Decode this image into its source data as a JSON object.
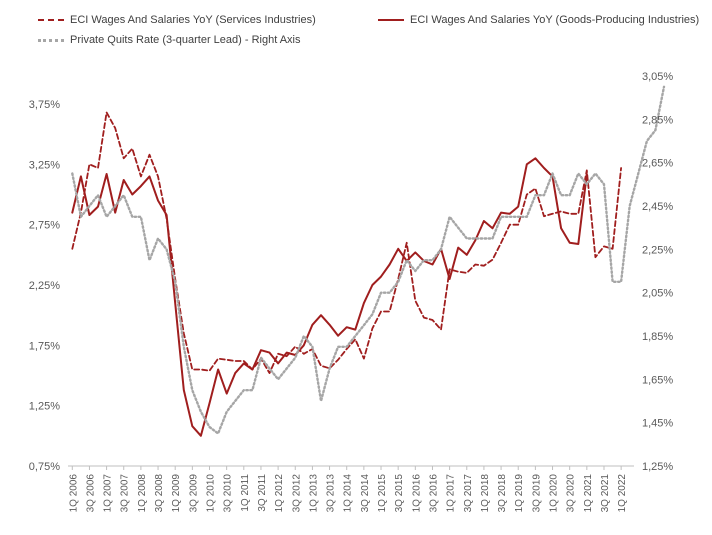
{
  "chart_data": {
    "type": "line",
    "title": "",
    "legend": [
      "ECI Wages And Salaries YoY (Services Industries)",
      "ECI Wages And Salaries YoY (Goods-Producing Industries)",
      "Private Quits Rate (3-quarter Lead) - Right Axis"
    ],
    "legend_position": "top",
    "grid": false,
    "left_axis": {
      "ticks": [
        "0,75%",
        "1,25%",
        "1,75%",
        "2,25%",
        "2,75%",
        "3,25%",
        "3,75%"
      ],
      "tick_values": [
        0.75,
        1.25,
        1.75,
        2.25,
        2.75,
        3.25,
        3.75
      ],
      "range": [
        0.75,
        3.75
      ]
    },
    "right_axis": {
      "ticks": [
        "1,25%",
        "1,45%",
        "1,65%",
        "1,85%",
        "2,05%",
        "2,25%",
        "2,45%",
        "2,65%",
        "2,85%",
        "3,05%"
      ],
      "tick_values": [
        1.25,
        1.45,
        1.65,
        1.85,
        2.05,
        2.25,
        2.45,
        2.65,
        2.85,
        3.05
      ],
      "range": [
        1.25,
        3.05
      ]
    },
    "x_tick_labels": [
      "1Q 2006",
      "3Q 2006",
      "1Q 2007",
      "3Q 2007",
      "1Q 2008",
      "3Q 2008",
      "1Q 2009",
      "3Q 2009",
      "1Q 2010",
      "3Q 2010",
      "1Q 2011",
      "3Q 2011",
      "1Q 2012",
      "3Q 2012",
      "1Q 2013",
      "3Q 2013",
      "1Q 2014",
      "3Q 2014",
      "1Q 2015",
      "3Q 2015",
      "1Q 2016",
      "3Q 2016",
      "1Q 2017",
      "3Q 2017",
      "1Q 2018",
      "3Q 2018",
      "1Q 2019",
      "3Q 2019",
      "1Q 2020",
      "3Q 2020",
      "1Q 2021",
      "3Q 2021",
      "1Q 2022"
    ],
    "series": [
      {
        "name": "ECI Wages And Salaries YoY (Services Industries)",
        "axis": "left",
        "style": "dashed",
        "color": "#A01E1E",
        "values": [
          2.55,
          2.85,
          3.25,
          3.22,
          3.68,
          3.55,
          3.3,
          3.38,
          3.15,
          3.33,
          3.15,
          2.8,
          2.3,
          1.85,
          1.55,
          1.55,
          1.54,
          1.64,
          1.63,
          1.62,
          1.62,
          1.55,
          1.64,
          1.52,
          1.68,
          1.66,
          1.74,
          1.68,
          1.72,
          1.58,
          1.56,
          1.63,
          1.72,
          1.8,
          1.64,
          1.89,
          2.03,
          2.03,
          2.3,
          2.6,
          2.12,
          1.98,
          1.96,
          1.88,
          2.38,
          2.36,
          2.35,
          2.42,
          2.41,
          2.46,
          2.6,
          2.75,
          2.75,
          3.0,
          3.05,
          2.82,
          2.84,
          2.86,
          2.84,
          2.84,
          3.2,
          2.48,
          2.57,
          2.55,
          3.22
        ]
      },
      {
        "name": "ECI Wages And Salaries YoY (Goods-Producing Industries)",
        "axis": "left",
        "style": "solid",
        "color": "#A01E1E",
        "values": [
          2.85,
          3.15,
          2.83,
          2.9,
          3.17,
          2.85,
          3.12,
          3.0,
          3.07,
          3.15,
          2.95,
          2.83,
          2.1,
          1.38,
          1.08,
          1.0,
          1.27,
          1.55,
          1.35,
          1.52,
          1.6,
          1.55,
          1.71,
          1.69,
          1.6,
          1.69,
          1.67,
          1.75,
          1.92,
          2.0,
          1.92,
          1.83,
          1.9,
          1.88,
          2.1,
          2.25,
          2.32,
          2.42,
          2.55,
          2.45,
          2.52,
          2.45,
          2.42,
          2.55,
          2.3,
          2.56,
          2.5,
          2.62,
          2.78,
          2.72,
          2.85,
          2.84,
          2.9,
          3.25,
          3.3,
          3.22,
          3.15,
          2.72,
          2.6,
          2.59,
          3.17
        ]
      },
      {
        "name": "Private Quits Rate (3-quarter Lead) - Right Axis",
        "axis": "right",
        "style": "dotted",
        "color": "#A6A6A6",
        "values": [
          2.6,
          2.4,
          2.45,
          2.5,
          2.4,
          2.45,
          2.5,
          2.4,
          2.4,
          2.2,
          2.3,
          2.25,
          2.1,
          1.8,
          1.6,
          1.5,
          1.43,
          1.4,
          1.5,
          1.55,
          1.6,
          1.6,
          1.75,
          1.7,
          1.65,
          1.7,
          1.75,
          1.85,
          1.8,
          1.55,
          1.7,
          1.8,
          1.8,
          1.85,
          1.9,
          1.95,
          2.05,
          2.05,
          2.1,
          2.2,
          2.15,
          2.2,
          2.2,
          2.25,
          2.4,
          2.35,
          2.3,
          2.3,
          2.3,
          2.3,
          2.4,
          2.4,
          2.4,
          2.4,
          2.5,
          2.5,
          2.6,
          2.5,
          2.5,
          2.6,
          2.55,
          2.6,
          2.55,
          2.1,
          2.1,
          2.45,
          2.6,
          2.75,
          2.8,
          3.0
        ]
      }
    ]
  },
  "colors": {
    "services": "#A01E1E",
    "goods": "#A01E1E",
    "quits": "#A6A6A6",
    "axis": "#BFBFBF",
    "text": "#595959"
  }
}
